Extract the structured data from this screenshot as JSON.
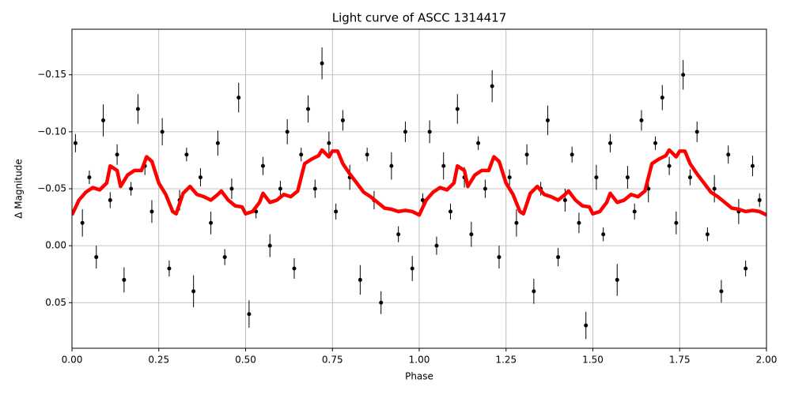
{
  "chart_data": {
    "type": "scatter",
    "title": "Light curve of ASCC 1314417",
    "xlabel": "Phase",
    "ylabel": "Δ Magnitude",
    "grid": true,
    "xlim": [
      0,
      2
    ],
    "ylim": [
      0.09,
      -0.19
    ],
    "xticks": [
      {
        "value": 0,
        "label": "0.00"
      },
      {
        "value": 0.25,
        "label": "0.25"
      },
      {
        "value": 0.5,
        "label": "0.50"
      },
      {
        "value": 0.75,
        "label": "0.75"
      },
      {
        "value": 1,
        "label": "1.00"
      },
      {
        "value": 1.25,
        "label": "1.25"
      },
      {
        "value": 1.5,
        "label": "1.50"
      },
      {
        "value": 1.75,
        "label": "1.75"
      },
      {
        "value": 2,
        "label": "2.00"
      }
    ],
    "yticks": [
      {
        "value": -0.15,
        "label": "−0.15"
      },
      {
        "value": -0.1,
        "label": "−0.10"
      },
      {
        "value": -0.05,
        "label": "−0.05"
      },
      {
        "value": 0,
        "label": "0.00"
      },
      {
        "value": 0.05,
        "label": "0.05"
      }
    ],
    "series": [
      {
        "type": "scatter",
        "color": "#000000",
        "x": [
          0.01,
          0.03,
          0.05,
          0.07,
          0.09,
          0.11,
          0.13,
          0.15,
          0.17,
          0.19,
          0.21,
          0.23,
          0.26,
          0.28,
          0.31,
          0.33,
          0.35,
          0.37,
          0.4,
          0.42,
          0.44,
          0.46,
          0.48,
          0.51,
          0.53,
          0.55,
          0.57,
          0.6,
          0.62,
          0.64,
          0.66,
          0.68,
          0.7,
          0.72,
          0.74,
          0.76,
          0.78,
          0.8,
          0.83,
          0.85,
          0.87,
          0.89,
          0.92,
          0.94,
          0.96,
          0.98,
          1.01,
          1.03,
          1.05,
          1.07,
          1.09,
          1.11,
          1.13,
          1.15,
          1.17,
          1.19,
          1.21,
          1.23,
          1.26,
          1.28,
          1.31,
          1.33,
          1.35,
          1.37,
          1.4,
          1.42,
          1.44,
          1.46,
          1.48,
          1.51,
          1.53,
          1.55,
          1.57,
          1.6,
          1.62,
          1.64,
          1.66,
          1.68,
          1.7,
          1.72,
          1.74,
          1.76,
          1.78,
          1.8,
          1.83,
          1.85,
          1.87,
          1.89,
          1.92,
          1.94,
          1.96,
          1.98
        ],
        "values": [
          -0.09,
          -0.02,
          -0.06,
          0.01,
          -0.11,
          -0.04,
          -0.08,
          0.03,
          -0.05,
          -0.12,
          -0.07,
          -0.03,
          -0.1,
          0.02,
          -0.04,
          -0.08,
          0.04,
          -0.06,
          -0.02,
          -0.09,
          0.01,
          -0.05,
          -0.13,
          0.06,
          -0.03,
          -0.07,
          0.0,
          -0.05,
          -0.1,
          0.02,
          -0.08,
          -0.12,
          -0.05,
          -0.16,
          -0.09,
          -0.03,
          -0.11,
          -0.06,
          0.03,
          -0.08,
          -0.04,
          0.05,
          -0.07,
          -0.01,
          -0.1,
          0.02,
          -0.04,
          -0.1,
          0.0,
          -0.07,
          -0.03,
          -0.12,
          -0.06,
          -0.01,
          -0.09,
          -0.05,
          -0.14,
          0.01,
          -0.06,
          -0.02,
          -0.08,
          0.04,
          -0.05,
          -0.11,
          0.01,
          -0.04,
          -0.08,
          -0.02,
          0.07,
          -0.06,
          -0.01,
          -0.09,
          0.03,
          -0.06,
          -0.03,
          -0.11,
          -0.05,
          -0.09,
          -0.13,
          -0.07,
          -0.02,
          -0.15,
          -0.06,
          -0.1,
          -0.01,
          -0.05,
          0.04,
          -0.08,
          -0.03,
          0.02,
          -0.07,
          -0.04
        ],
        "errors": [
          0.008,
          0.012,
          0.006,
          0.01,
          0.014,
          0.007,
          0.009,
          0.011,
          0.006,
          0.013,
          0.008,
          0.01,
          0.012,
          0.007,
          0.009,
          0.006,
          0.014,
          0.008,
          0.01,
          0.011,
          0.007,
          0.009,
          0.013,
          0.012,
          0.006,
          0.008,
          0.01,
          0.007,
          0.011,
          0.009,
          0.006,
          0.012,
          0.008,
          0.014,
          0.01,
          0.007,
          0.009,
          0.011,
          0.013,
          0.006,
          0.008,
          0.01,
          0.012,
          0.007,
          0.009,
          0.011,
          0.006,
          0.01,
          0.008,
          0.012,
          0.007,
          0.013,
          0.009,
          0.011,
          0.006,
          0.008,
          0.014,
          0.01,
          0.007,
          0.012,
          0.009,
          0.011,
          0.006,
          0.013,
          0.008,
          0.01,
          0.007,
          0.009,
          0.012,
          0.011,
          0.006,
          0.008,
          0.014,
          0.01,
          0.007,
          0.009,
          0.012,
          0.006,
          0.011,
          0.008,
          0.01,
          0.013,
          0.007,
          0.009,
          0.006,
          0.012,
          0.01,
          0.008,
          0.011,
          0.007,
          0.009,
          0.006
        ]
      },
      {
        "type": "line",
        "color": "#ff0000",
        "x": [
          0.0,
          0.02,
          0.04,
          0.06,
          0.08,
          0.1,
          0.11,
          0.13,
          0.14,
          0.16,
          0.18,
          0.2,
          0.215,
          0.23,
          0.25,
          0.27,
          0.29,
          0.3,
          0.32,
          0.34,
          0.36,
          0.38,
          0.4,
          0.42,
          0.43,
          0.45,
          0.47,
          0.49,
          0.5,
          0.52,
          0.54,
          0.55,
          0.57,
          0.59,
          0.61,
          0.63,
          0.65,
          0.66,
          0.67,
          0.69,
          0.71,
          0.72,
          0.74,
          0.75,
          0.765,
          0.78,
          0.8,
          0.82,
          0.84,
          0.86,
          0.88,
          0.9,
          0.92,
          0.94,
          0.96,
          0.98,
          1.0,
          1.02,
          1.04,
          1.06,
          1.08,
          1.1,
          1.11,
          1.13,
          1.14,
          1.16,
          1.18,
          1.2,
          1.215,
          1.23,
          1.25,
          1.27,
          1.29,
          1.3,
          1.32,
          1.34,
          1.36,
          1.38,
          1.4,
          1.42,
          1.43,
          1.45,
          1.47,
          1.49,
          1.5,
          1.52,
          1.54,
          1.55,
          1.57,
          1.59,
          1.61,
          1.63,
          1.65,
          1.66,
          1.67,
          1.69,
          1.71,
          1.72,
          1.74,
          1.75,
          1.765,
          1.78,
          1.8,
          1.82,
          1.84,
          1.86,
          1.88,
          1.9,
          1.92,
          1.94,
          1.96,
          1.98,
          2.0
        ],
        "values": [
          -0.027,
          -0.04,
          -0.047,
          -0.051,
          -0.049,
          -0.055,
          -0.07,
          -0.066,
          -0.052,
          -0.062,
          -0.066,
          -0.066,
          -0.078,
          -0.074,
          -0.055,
          -0.045,
          -0.03,
          -0.028,
          -0.046,
          -0.052,
          -0.045,
          -0.043,
          -0.04,
          -0.045,
          -0.048,
          -0.04,
          -0.035,
          -0.034,
          -0.028,
          -0.03,
          -0.038,
          -0.046,
          -0.038,
          -0.04,
          -0.045,
          -0.043,
          -0.048,
          -0.06,
          -0.072,
          -0.076,
          -0.079,
          -0.084,
          -0.078,
          -0.083,
          -0.083,
          -0.072,
          -0.063,
          -0.055,
          -0.047,
          -0.043,
          -0.038,
          -0.033,
          -0.032,
          -0.03,
          -0.031,
          -0.03,
          -0.027,
          -0.04,
          -0.047,
          -0.051,
          -0.049,
          -0.055,
          -0.07,
          -0.066,
          -0.052,
          -0.062,
          -0.066,
          -0.066,
          -0.078,
          -0.074,
          -0.055,
          -0.045,
          -0.03,
          -0.028,
          -0.046,
          -0.052,
          -0.045,
          -0.043,
          -0.04,
          -0.045,
          -0.048,
          -0.04,
          -0.035,
          -0.034,
          -0.028,
          -0.03,
          -0.038,
          -0.046,
          -0.038,
          -0.04,
          -0.045,
          -0.043,
          -0.048,
          -0.06,
          -0.072,
          -0.076,
          -0.079,
          -0.084,
          -0.078,
          -0.083,
          -0.083,
          -0.072,
          -0.063,
          -0.055,
          -0.047,
          -0.043,
          -0.038,
          -0.033,
          -0.032,
          -0.03,
          -0.031,
          -0.03,
          -0.027
        ]
      }
    ]
  }
}
